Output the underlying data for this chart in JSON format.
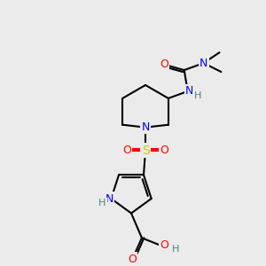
{
  "bg_color": "#ebebeb",
  "bond_color": "#000000",
  "bond_width": 1.5,
  "atom_colors": {
    "O": "#ff0000",
    "N": "#0000ff",
    "S": "#cccc00",
    "H": "#4a8080",
    "C": "#000000"
  },
  "font_size": 9,
  "font_size_small": 8
}
